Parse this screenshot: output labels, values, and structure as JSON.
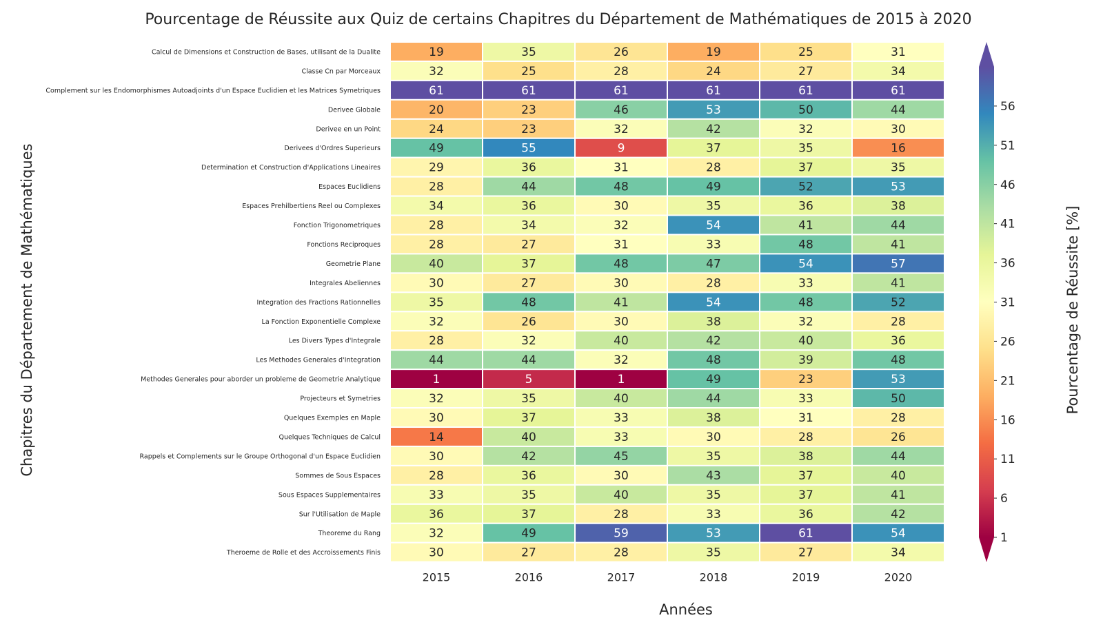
{
  "chart_data": {
    "type": "heatmap",
    "title": "Pourcentage de Réussite aux Quiz de certains Chapitres du Département de Mathématiques de 2015 à 2020",
    "xlabel": "Années",
    "ylabel": "Chapitres du Département de Mathématiques",
    "colorbar_label": "Pourcentage de Réussite [%]",
    "colormap": "Spectral",
    "value_range": [
      1,
      61
    ],
    "colorbar_ticks": [
      1,
      6,
      11,
      16,
      21,
      26,
      31,
      36,
      41,
      46,
      51,
      56
    ],
    "colorbar_extend": "both",
    "columns": [
      "2015",
      "2016",
      "2017",
      "2018",
      "2019",
      "2020"
    ],
    "rows": [
      "Calcul de Dimensions et Construction de Bases, utilisant de la Dualite",
      "Classe Cn par Morceaux",
      "Complement sur les Endomorphismes Autoadjoints d'un Espace Euclidien et les Matrices Symetriques",
      "Derivee Globale",
      "Derivee en un Point",
      "Derivees d'Ordres Superieurs",
      "Determination et Construction d'Applications Lineaires",
      "Espaces Euclidiens",
      "Espaces Prehilbertiens Reel ou Complexes",
      "Fonction Trigonometriques",
      "Fonctions Reciproques",
      "Geometrie Plane",
      "Integrales Abeliennes",
      "Integration des Fractions Rationnelles",
      "La Fonction Exponentielle Complexe",
      "Les Divers Types d'Integrale",
      "Les Methodes Generales d'Integration",
      "Methodes Generales pour aborder un probleme de Geometrie Analytique",
      "Projecteurs et Symetries",
      "Quelques Exemples en Maple",
      "Quelques Techniques de Calcul",
      "Rappels et Complements sur le Groupe Orthogonal d'un Espace Euclidien",
      "Sommes de Sous Espaces",
      "Sous Espaces Supplementaires",
      "Sur l'Utilisation de Maple",
      "Theoreme du Rang",
      "Theroeme de Rolle et des Accroissements Finis"
    ],
    "values": [
      [
        19,
        35,
        26,
        19,
        25,
        31
      ],
      [
        32,
        25,
        28,
        24,
        27,
        34
      ],
      [
        61,
        61,
        61,
        61,
        61,
        61
      ],
      [
        20,
        23,
        46,
        53,
        50,
        44
      ],
      [
        24,
        23,
        32,
        42,
        32,
        30
      ],
      [
        49,
        55,
        9,
        37,
        35,
        16
      ],
      [
        29,
        36,
        31,
        28,
        37,
        35
      ],
      [
        28,
        44,
        48,
        49,
        52,
        53
      ],
      [
        34,
        36,
        30,
        35,
        36,
        38
      ],
      [
        28,
        34,
        32,
        54,
        41,
        44
      ],
      [
        28,
        27,
        31,
        33,
        48,
        41
      ],
      [
        40,
        37,
        48,
        47,
        54,
        57
      ],
      [
        30,
        27,
        30,
        28,
        33,
        41
      ],
      [
        35,
        48,
        41,
        54,
        48,
        52
      ],
      [
        32,
        26,
        30,
        38,
        32,
        28
      ],
      [
        28,
        32,
        40,
        42,
        40,
        36
      ],
      [
        44,
        44,
        32,
        48,
        39,
        48
      ],
      [
        1,
        5,
        1,
        49,
        23,
        53
      ],
      [
        32,
        35,
        40,
        44,
        33,
        50
      ],
      [
        30,
        37,
        33,
        38,
        31,
        28
      ],
      [
        14,
        40,
        33,
        30,
        28,
        26
      ],
      [
        30,
        42,
        45,
        35,
        38,
        44
      ],
      [
        28,
        36,
        30,
        43,
        37,
        40
      ],
      [
        33,
        35,
        40,
        35,
        37,
        41
      ],
      [
        36,
        37,
        28,
        33,
        36,
        42
      ],
      [
        32,
        49,
        59,
        53,
        61,
        54
      ],
      [
        30,
        27,
        28,
        35,
        27,
        34
      ]
    ]
  }
}
